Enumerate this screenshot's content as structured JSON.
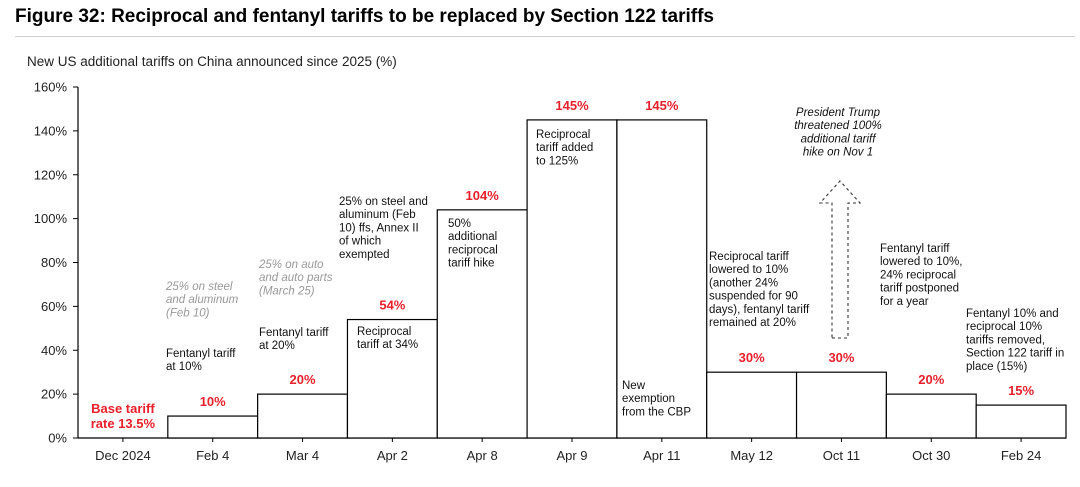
{
  "title": "Figure 32: Reciprocal and fentanyl tariffs to be replaced by Section 122 tariffs",
  "subtitle": "New US additional tariffs on China announced since 2025 (%)",
  "colors": {
    "accent": "#e8202b",
    "bar_stroke": "#000000",
    "bar_fill": "#ffffff",
    "gray_text": "#999999"
  },
  "chart_data": {
    "type": "bar",
    "title": "New US additional tariffs on China announced since 2025 (%)",
    "categories": [
      "Dec 2024",
      "Feb 4",
      "Mar 4",
      "Apr 2",
      "Apr 8",
      "Apr 9",
      "Apr 11",
      "May 12",
      "Oct 11",
      "Oct 30",
      "Feb 24"
    ],
    "values": [
      0,
      10,
      20,
      54,
      104,
      145,
      145,
      30,
      30,
      20,
      15
    ],
    "value_labels": [
      "Base tariff rate 13.5%",
      "10%",
      "20%",
      "54%",
      "104%",
      "145%",
      "145%",
      "30%",
      "30%",
      "20%",
      "15%"
    ],
    "base_label_lines": [
      "Base tariff",
      "rate 13.5%"
    ],
    "ylim": [
      0,
      160
    ],
    "yticks": [
      0,
      20,
      40,
      60,
      80,
      100,
      120,
      140,
      160
    ],
    "ytick_labels": [
      "0%",
      "20%",
      "40%",
      "60%",
      "80%",
      "100%",
      "120%",
      "140%",
      "160%"
    ],
    "xlabel": "",
    "ylabel": "",
    "grid": false,
    "annotations": [
      {
        "id": "feb4-steel",
        "category": "Feb 4",
        "style": "gray",
        "lines": [
          "25% on steel",
          "and aluminum",
          "(Feb 10)"
        ]
      },
      {
        "id": "feb4-fentanyl",
        "category": "Feb 4",
        "style": "normal",
        "lines": [
          "Fentanyl tariff",
          "at 10%"
        ]
      },
      {
        "id": "mar4-auto",
        "category": "Mar 4",
        "style": "gray",
        "lines": [
          "25% on auto",
          "and auto parts",
          "(March 25)"
        ]
      },
      {
        "id": "mar4-fentanyl",
        "category": "Mar 4",
        "style": "normal",
        "lines": [
          "Fentanyl tariff",
          "at 20%"
        ]
      },
      {
        "id": "apr2-steel",
        "category": "Apr 2",
        "style": "normal",
        "lines": [
          "25% on steel and",
          "aluminum (Feb",
          "10) ffs, Annex II",
          "of which",
          "exempted"
        ]
      },
      {
        "id": "apr2-reciprocal",
        "category": "Apr 2",
        "style": "normal",
        "lines": [
          "Reciprocal",
          "tariff at 34%"
        ]
      },
      {
        "id": "apr8-hike",
        "category": "Apr 8",
        "style": "normal",
        "lines": [
          "50%",
          "additional",
          "reciprocal",
          "tariff hike"
        ]
      },
      {
        "id": "apr9-added",
        "category": "Apr 9",
        "style": "normal",
        "lines": [
          "Reciprocal",
          "tariff added",
          "to 125%"
        ]
      },
      {
        "id": "apr11-exemption",
        "category": "Apr 11",
        "style": "normal",
        "lines": [
          "New",
          "exemption",
          "from the CBP"
        ]
      },
      {
        "id": "may12-lowered",
        "category": "May 12",
        "style": "normal",
        "lines": [
          "Reciprocal tariff",
          "lowered to 10%",
          "(another 24%",
          "suspended for 90",
          "days), fentanyl tariff",
          "remained at 20%"
        ]
      },
      {
        "id": "oct11-threat",
        "category": "Oct 11",
        "style": "italic",
        "lines": [
          "President Trump",
          "threatened 100%",
          "additional tariff",
          "hike on Nov 1"
        ]
      },
      {
        "id": "oct30-lowered",
        "category": "Oct 30",
        "style": "normal",
        "lines": [
          "Fentanyl tariff",
          "lowered to 10%,",
          "24% reciprocal",
          "tariff postponed",
          "for a year"
        ]
      },
      {
        "id": "feb24-removed",
        "category": "Feb 24",
        "style": "normal",
        "lines": [
          "Fentanyl 10% and",
          "reciprocal 10%",
          "tariffs removed,",
          "Section 122 tariff in",
          "place (15%)"
        ]
      }
    ]
  }
}
